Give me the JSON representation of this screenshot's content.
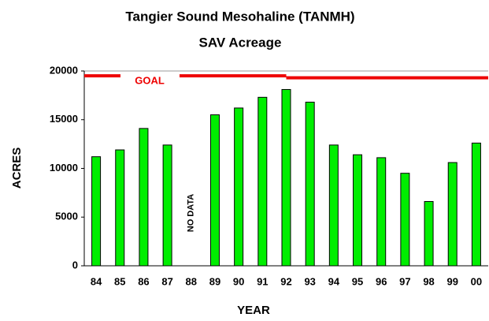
{
  "chart_data": {
    "type": "bar",
    "title": "Tangier Sound Mesohaline (TANMH)",
    "subtitle": "SAV Acreage",
    "x_label": "YEAR",
    "y_label": "ACRES",
    "categories": [
      "84",
      "85",
      "86",
      "87",
      "88",
      "89",
      "90",
      "91",
      "92",
      "93",
      "94",
      "95",
      "96",
      "97",
      "98",
      "99",
      "00"
    ],
    "values": [
      11200,
      11900,
      14100,
      12400,
      null,
      15500,
      16200,
      17300,
      18100,
      16800,
      12400,
      11400,
      11100,
      9500,
      6600,
      10600,
      12600
    ],
    "color": "#00ee00",
    "ylim": [
      0,
      20000
    ],
    "yticks": [
      0,
      5000,
      10000,
      15000,
      20000
    ],
    "annotations": [
      {
        "text": "NO DATA",
        "category": "88"
      }
    ],
    "goal": {
      "label": "GOAL",
      "color": "#ee0000",
      "segments": [
        {
          "from": "84",
          "to": "92",
          "value": 19500
        },
        {
          "from": "92",
          "to": "00",
          "value": 19300
        }
      ]
    }
  }
}
